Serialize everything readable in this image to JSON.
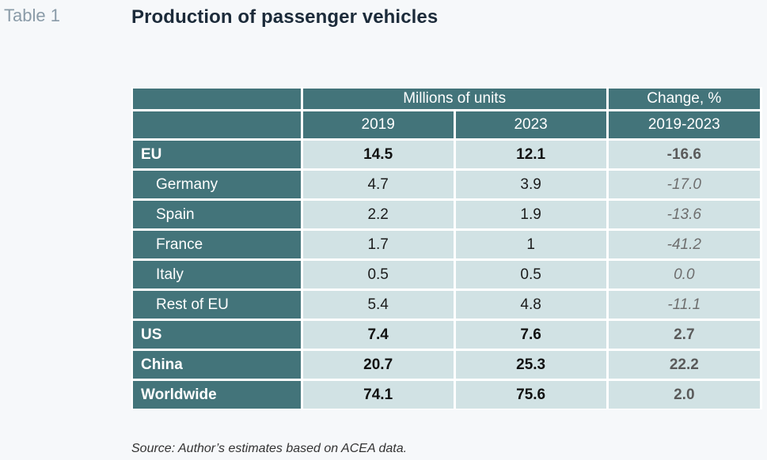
{
  "table_label": "Table 1",
  "title": "Production of passenger vehicles",
  "header": {
    "group_units": "Millions of units",
    "group_change": "Change, %",
    "col_2019": "2019",
    "col_2023": "2023",
    "col_change": "2019-2023"
  },
  "rows": [
    {
      "label": "EU",
      "y2019": "14.5",
      "y2023": "12.1",
      "change": "-16.6"
    },
    {
      "label": "Germany",
      "y2019": "4.7",
      "y2023": "3.9",
      "change": "-17.0"
    },
    {
      "label": "Spain",
      "y2019": "2.2",
      "y2023": "1.9",
      "change": "-13.6"
    },
    {
      "label": "France",
      "y2019": "1.7",
      "y2023": "1",
      "change": "-41.2"
    },
    {
      "label": "Italy",
      "y2019": "0.5",
      "y2023": "0.5",
      "change": "0.0"
    },
    {
      "label": "Rest of EU",
      "y2019": "5.4",
      "y2023": "4.8",
      "change": "-11.1"
    },
    {
      "label": "US",
      "y2019": "7.4",
      "y2023": "7.6",
      "change": "2.7"
    },
    {
      "label": "China",
      "y2019": "20.7",
      "y2023": "25.3",
      "change": "22.2"
    },
    {
      "label": "Worldwide",
      "y2019": "74.1",
      "y2023": "75.6",
      "change": "2.0"
    }
  ],
  "source": "Source: Author’s estimates based on ACEA data.",
  "colors": {
    "header_bg": "#43747a",
    "cell_bg": "#d1e2e4",
    "background": "#f6f8fa"
  }
}
